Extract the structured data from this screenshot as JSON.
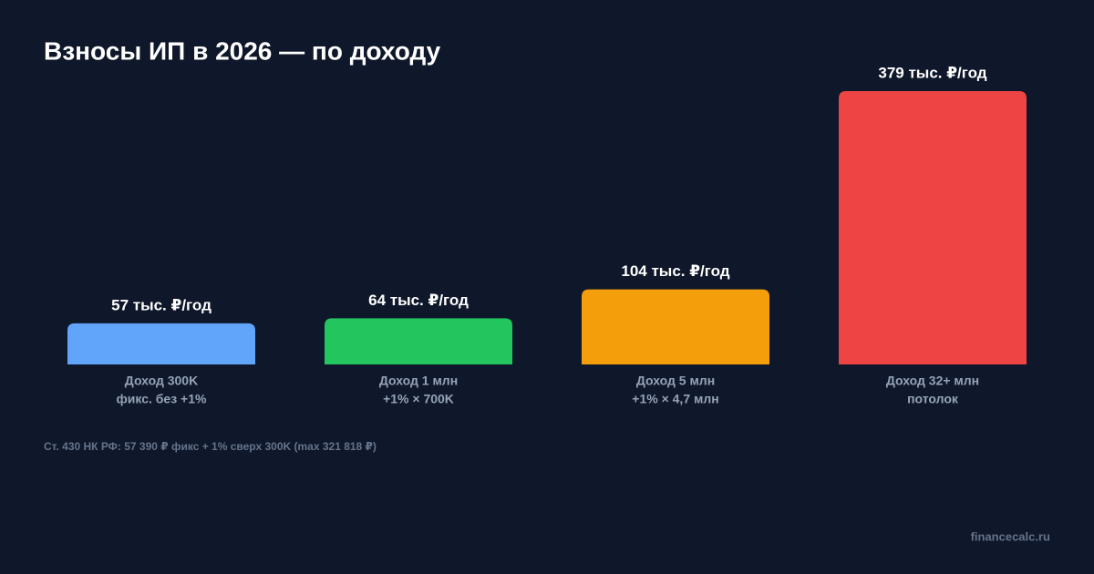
{
  "chart_data": {
    "type": "bar",
    "title": "Взносы ИП в 2026 — по доходу",
    "categories": [
      "Доход 300K",
      "Доход 1 млн",
      "Доход 5 млн",
      "Доход 32+ млн"
    ],
    "category_notes": [
      "фикс. без +1%",
      "+1% × 700K",
      "+1% × 4,7 млн",
      "потолок"
    ],
    "values": [
      57,
      64,
      104,
      379
    ],
    "value_labels": [
      "57 тыс. ₽/год",
      "64 тыс. ₽/год",
      "104 тыс. ₽/год",
      "379 тыс. ₽/год"
    ],
    "colors": [
      "#60a5fa",
      "#22c55e",
      "#f59e0b",
      "#ef4444"
    ],
    "footnote": "Ст. 430 НК РФ: 57 390 ₽ фикс + 1% сверх 300K (max 321 818 ₽)",
    "watermark": "financecalc.ru"
  }
}
